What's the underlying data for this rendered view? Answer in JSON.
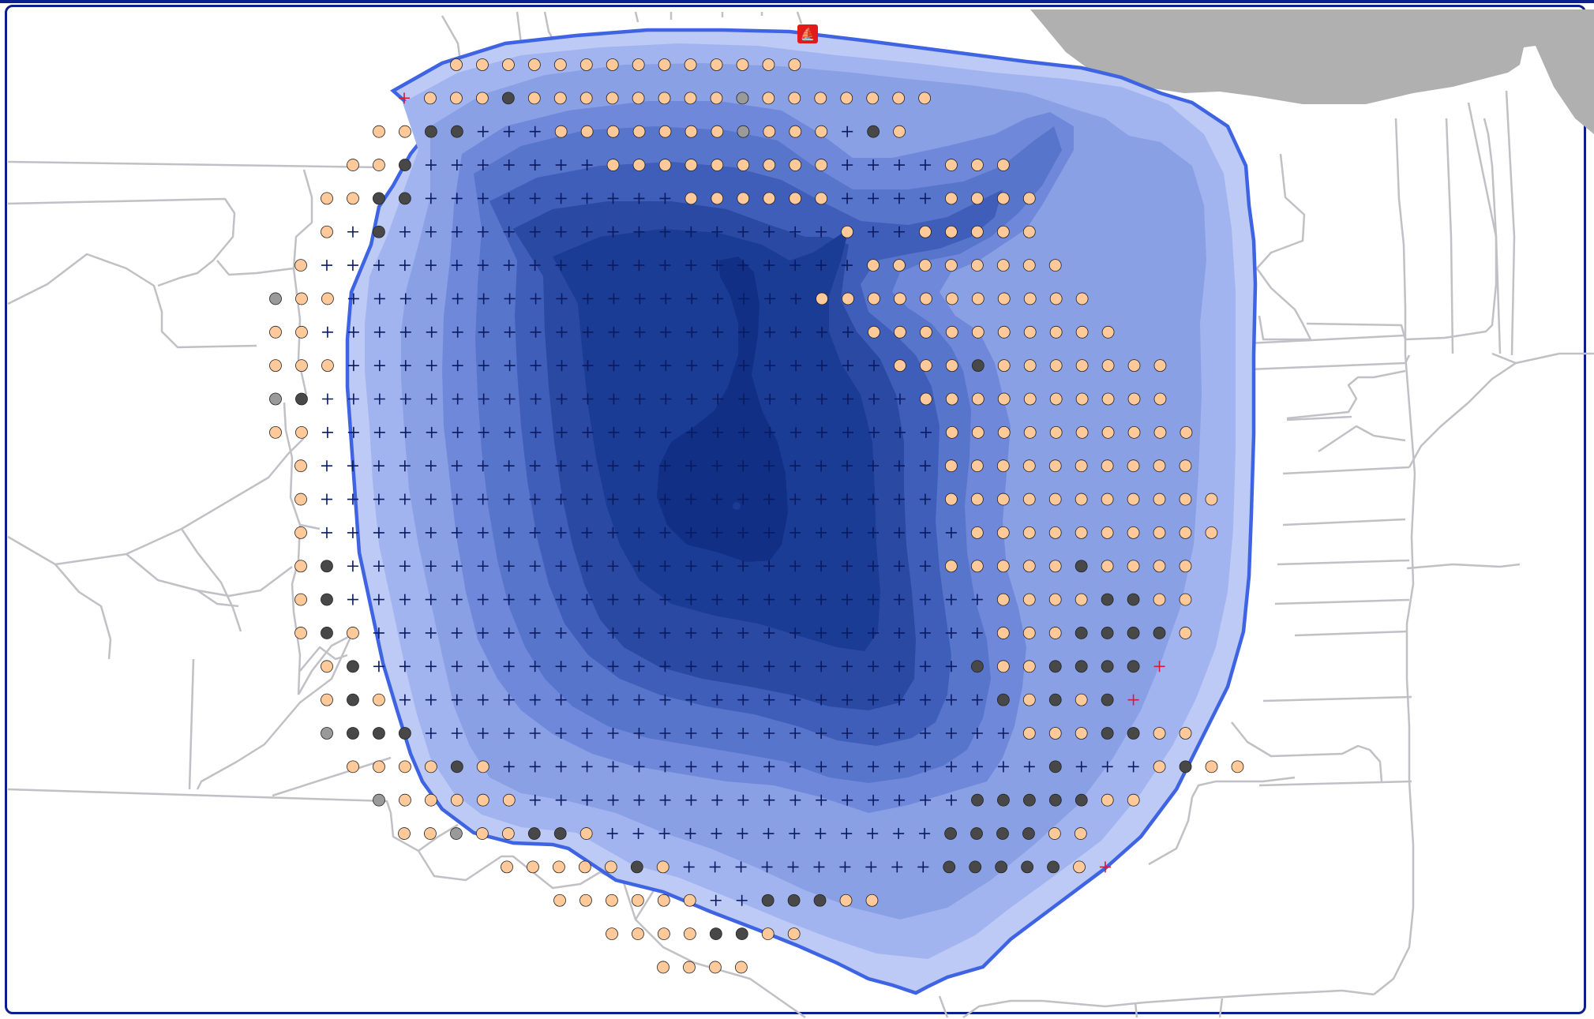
{
  "map": {
    "title": "",
    "colors": {
      "frame": "#0c1f8c",
      "land": "#b0b0b0",
      "roads": "#c0c0c6",
      "shoreline": "#3e64e4",
      "depth_bands": [
        "#bdcaf5",
        "#a2b4ef",
        "#8aa0e4",
        "#6f88da",
        "#5875cc",
        "#3f5eb9",
        "#2a49a3",
        "#1b3c95",
        "#102f85"
      ],
      "point_light": "#ffc99a",
      "point_dark": "#484848",
      "point_gray": "#9a9a9a",
      "plus_dark": "#0a1a60",
      "plus_red": "#d31a3a"
    },
    "icons": {
      "launch": "boat-launch-icon",
      "launch_symbol": "⛵",
      "point_types": [
        "light-circle",
        "dark-circle",
        "gray-circle",
        "plus-mark",
        "red-plus-mark"
      ]
    }
  }
}
